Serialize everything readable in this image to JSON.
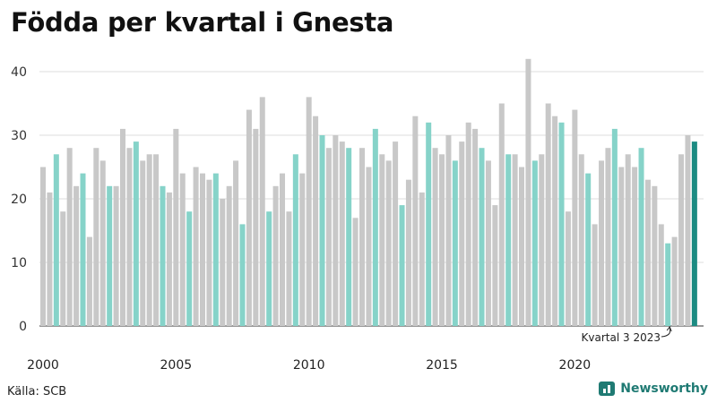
{
  "title": "Födda per kvartal i Gnesta",
  "source": "Källa: SCB",
  "brand": "Newsworthy",
  "colors": {
    "default": "#c8c8c8",
    "q3": "#86d3c9",
    "highlight": "#1c8b82",
    "grid": "#dddddd",
    "axis": "#333333"
  },
  "chart_data": {
    "type": "bar",
    "title": "Födda per kvartal i Gnesta",
    "xlabel": "",
    "ylabel": "",
    "ylim": [
      0,
      42
    ],
    "yticks": [
      0,
      10,
      20,
      30,
      40
    ],
    "grid": true,
    "start_year": 2000,
    "x_tick_labels": [
      "2000",
      "2005",
      "2010",
      "2015",
      "2020"
    ],
    "values": [
      25,
      21,
      27,
      18,
      28,
      22,
      24,
      14,
      28,
      26,
      22,
      22,
      31,
      28,
      29,
      26,
      27,
      27,
      22,
      21,
      31,
      24,
      18,
      25,
      24,
      23,
      24,
      20,
      22,
      26,
      16,
      34,
      31,
      36,
      18,
      22,
      24,
      18,
      27,
      24,
      36,
      33,
      30,
      28,
      30,
      29,
      28,
      17,
      28,
      25,
      31,
      27,
      26,
      29,
      19,
      23,
      33,
      21,
      32,
      28,
      27,
      30,
      26,
      29,
      32,
      31,
      28,
      26,
      19,
      35,
      27,
      27,
      25,
      42,
      26,
      27,
      35,
      33,
      32,
      18,
      34,
      27,
      24,
      16,
      26,
      28,
      31,
      25,
      27,
      25,
      28,
      23,
      22,
      16,
      13,
      14,
      27,
      30,
      29
    ],
    "annotation": "Kvartal 3 2023"
  }
}
